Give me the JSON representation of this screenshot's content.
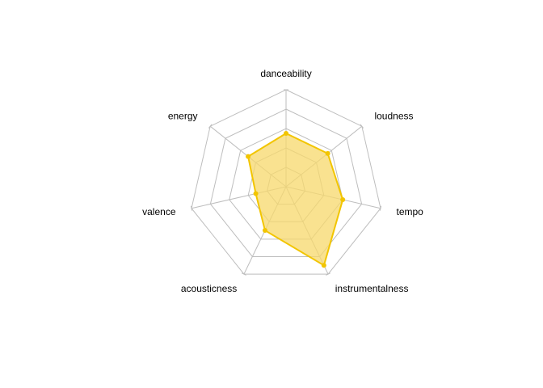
{
  "chart_data": {
    "type": "radar",
    "axes": [
      "danceability",
      "loudness",
      "tempo",
      "instrumentalness",
      "acousticness",
      "valence",
      "energy"
    ],
    "series": [
      {
        "values": [
          0.55,
          0.55,
          0.6,
          0.9,
          0.5,
          0.32,
          0.5
        ]
      }
    ],
    "range": [
      0,
      1
    ],
    "grid_levels": 5,
    "grid_color": "#bebebe",
    "series_color": "#f2c500",
    "fill_color": "#f7d86b",
    "fill_opacity": 0.75
  }
}
